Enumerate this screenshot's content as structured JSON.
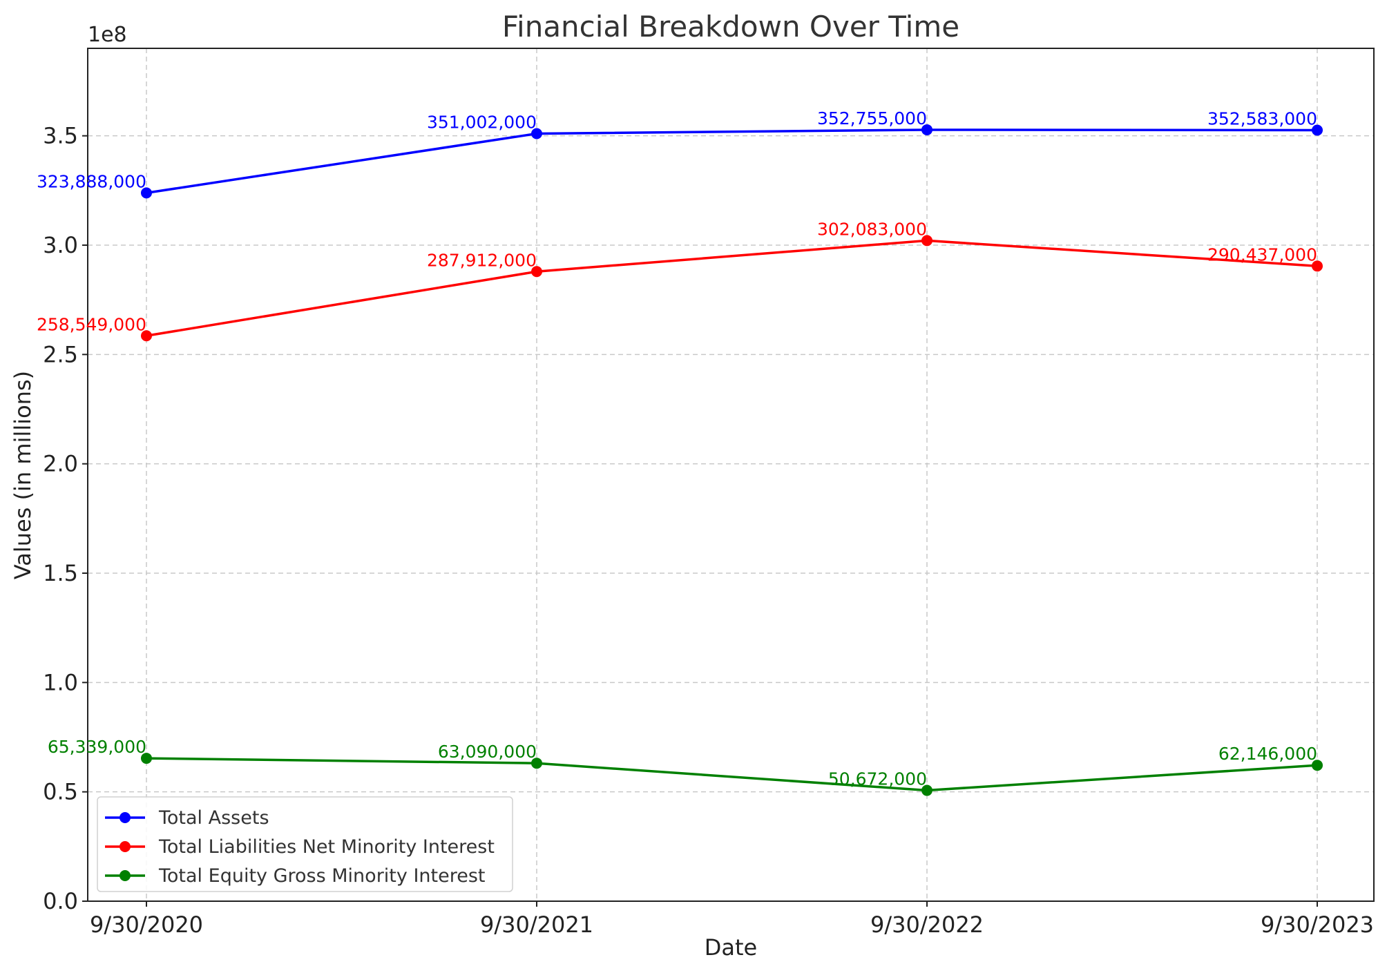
{
  "chart_data": {
    "type": "line",
    "title": "Financial Breakdown Over Time",
    "xlabel": "Date",
    "ylabel": "Values (in millions)",
    "y_offset_label": "1e8",
    "categories": [
      "9/30/2020",
      "9/30/2021",
      "9/30/2022",
      "9/30/2023"
    ],
    "ylim": [
      0,
      390000000
    ],
    "yticks": [
      0,
      50000000,
      100000000,
      150000000,
      200000000,
      250000000,
      300000000,
      350000000
    ],
    "ytick_labels": [
      "0.0",
      "0.5",
      "1.0",
      "1.5",
      "2.0",
      "2.5",
      "3.0",
      "3.5"
    ],
    "grid": true,
    "legend_position": "lower-left",
    "series": [
      {
        "name": "Total Assets",
        "color": "#0000ff",
        "values": [
          323888000,
          351002000,
          352755000,
          352583000
        ],
        "labels": [
          "323,888,000",
          "351,002,000",
          "352,755,000",
          "352,583,000"
        ]
      },
      {
        "name": "Total Liabilities Net Minority Interest",
        "color": "#ff0000",
        "values": [
          258549000,
          287912000,
          302083000,
          290437000
        ],
        "labels": [
          "258,549,000",
          "287,912,000",
          "302,083,000",
          "290,437,000"
        ]
      },
      {
        "name": "Total Equity Gross Minority Interest",
        "color": "#008000",
        "values": [
          65339000,
          63090000,
          50672000,
          62146000
        ],
        "labels": [
          "65,339,000",
          "63,090,000",
          "50,672,000",
          "62,146,000"
        ]
      }
    ]
  }
}
